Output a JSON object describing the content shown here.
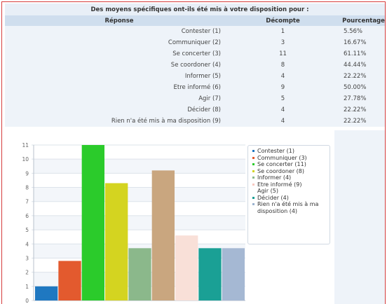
{
  "table": {
    "title": "Des moyens spécifiques ont-ils été mis à votre disposition pour :",
    "headers": {
      "response": "Réponse",
      "count": "Décompte",
      "percentage": "Pourcentage"
    },
    "rows": [
      {
        "label": "Contester (1)",
        "count": "1",
        "percent": "5.56%"
      },
      {
        "label": "Communiquer (2)",
        "count": "3",
        "percent": "16.67%"
      },
      {
        "label": "Se concerter (3)",
        "count": "11",
        "percent": "61.11%"
      },
      {
        "label": "Se coordoner (4)",
        "count": "8",
        "percent": "44.44%"
      },
      {
        "label": "Informer (5)",
        "count": "4",
        "percent": "22.22%"
      },
      {
        "label": "Etre informé (6)",
        "count": "9",
        "percent": "50.00%"
      },
      {
        "label": "Agir (7)",
        "count": "5",
        "percent": "27.78%"
      },
      {
        "label": "Décider (8)",
        "count": "4",
        "percent": "22.22%"
      },
      {
        "label": "Rien n'a été mis à ma disposition (9)",
        "count": "4",
        "percent": "22.22%"
      }
    ]
  },
  "legend": {
    "items": [
      {
        "label": "Contester (1)",
        "color": "#1f78c1"
      },
      {
        "label": "Communiquer (3)",
        "color": "#e35a2e"
      },
      {
        "label": "Se concerter (11)",
        "color": "#2bcb2b"
      },
      {
        "label": "Se coordoner (8)",
        "color": "#d4d420"
      },
      {
        "label": "Informer (4)",
        "color": "#8bb88b"
      },
      {
        "label": "Etre informé (9)",
        "color": "#f7c8c0"
      },
      {
        "label": "Agir (5)",
        "color": ""
      },
      {
        "label": "Décider (4)",
        "color": "#1aa095"
      },
      {
        "label": "Rien n'a été mis à ma disposition (4)",
        "color": "#9bb3d0"
      }
    ]
  },
  "chart_data": {
    "type": "bar",
    "categories": [
      "Contester (1)",
      "Communiquer (2)",
      "Se concerter (3)",
      "Se coordoner (4)",
      "Informer (5)",
      "Etre informé (6)",
      "Agir (7)",
      "Décider (8)",
      "Rien n'a été mis à ma disposition (9)"
    ],
    "values": [
      1,
      2.8,
      11,
      8.3,
      3.7,
      9.2,
      4.6,
      3.7,
      3.7
    ],
    "colors": [
      "#1f78c1",
      "#e35a2e",
      "#2bcb2b",
      "#d4d420",
      "#8bb88b",
      "#c9a67f",
      "#f9e0d8",
      "#1aa095",
      "#a5b8d3"
    ],
    "ylim": [
      0,
      11
    ],
    "yticks": [
      "0",
      "1",
      "2",
      "3",
      "4",
      "5",
      "6",
      "7",
      "8",
      "9",
      "10",
      "11"
    ],
    "grid": true,
    "legend_position": "right"
  }
}
